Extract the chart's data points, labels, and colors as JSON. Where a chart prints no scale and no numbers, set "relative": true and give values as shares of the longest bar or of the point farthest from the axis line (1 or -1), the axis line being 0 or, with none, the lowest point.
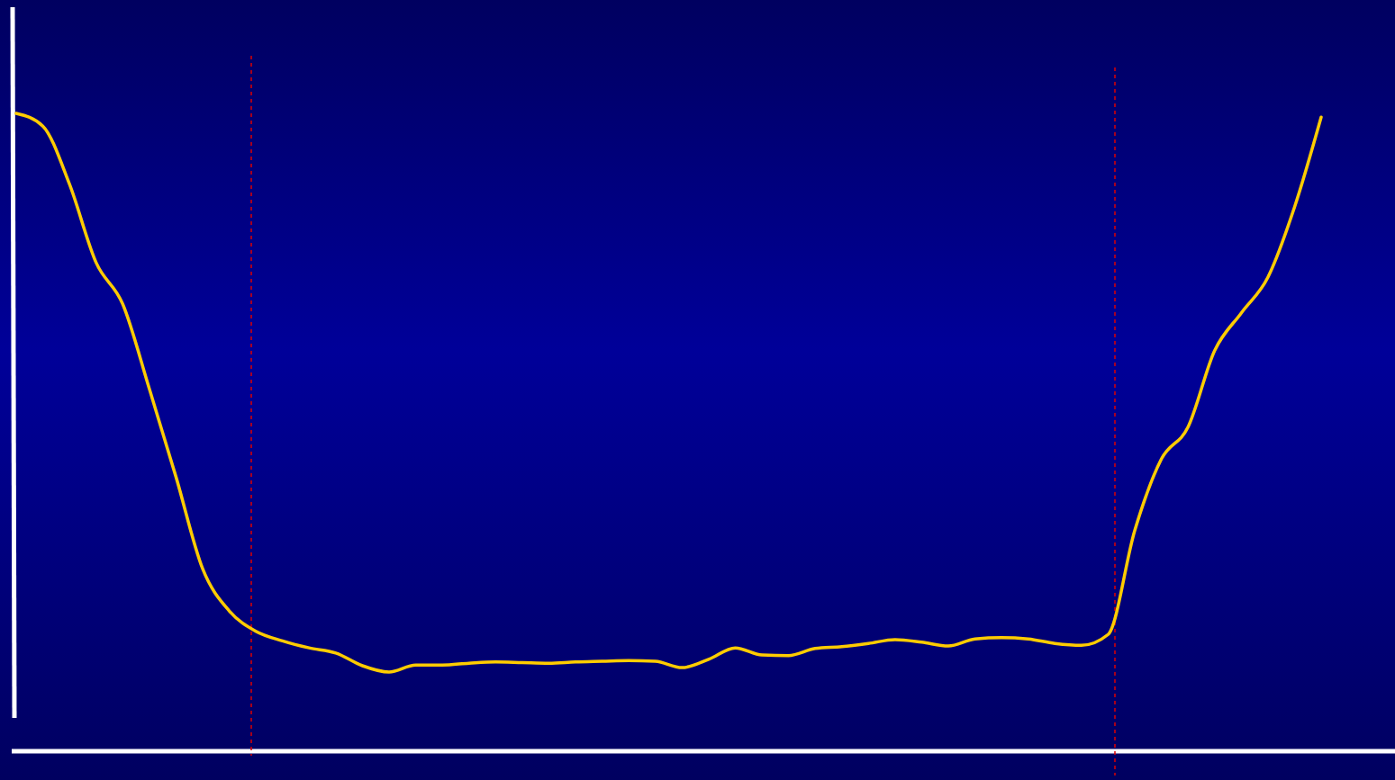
{
  "chart_data": {
    "type": "line",
    "relative": true,
    "categories": [
      null,
      null,
      null,
      null,
      null,
      null,
      null,
      null,
      null,
      null,
      null,
      null,
      null,
      null,
      null,
      null,
      null,
      null,
      null,
      null,
      null,
      null,
      null,
      null,
      null,
      null,
      null,
      null,
      null,
      null,
      null,
      null,
      null,
      null,
      null,
      null,
      null,
      null,
      null,
      null,
      null,
      null,
      null,
      null,
      null,
      null,
      null,
      null,
      null,
      null
    ],
    "series": [
      {
        "color": "#ffcc00",
        "values": [
          1.0,
          0.98,
          0.889,
          0.766,
          0.701,
          0.568,
          0.43,
          0.286,
          0.22,
          0.188,
          0.173,
          0.162,
          0.154,
          0.134,
          0.124,
          0.135,
          0.135,
          0.138,
          0.14,
          0.139,
          0.138,
          0.14,
          0.141,
          0.142,
          0.141,
          0.131,
          0.144,
          0.162,
          0.151,
          0.15,
          0.161,
          0.164,
          0.169,
          0.175,
          0.171,
          0.165,
          0.176,
          0.178,
          0.176,
          0.169,
          0.166,
          0.183,
          0.346,
          0.458,
          0.508,
          0.628,
          0.687,
          0.743,
          0.853,
          0.994
        ]
      }
    ],
    "marker": "none",
    "line_style": "solid",
    "grid": false
  }
}
